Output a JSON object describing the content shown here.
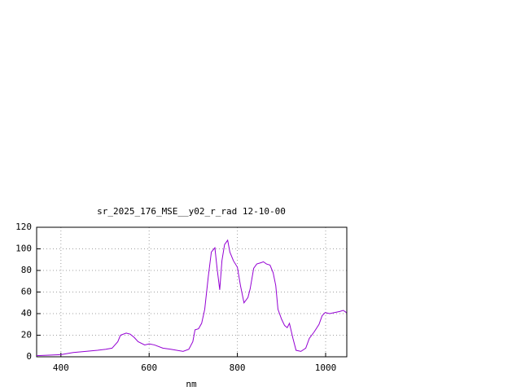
{
  "chart_data": {
    "type": "line",
    "title": "sr_2025_176_MSE__y02_r_rad 12-10-00",
    "x_label": "nm",
    "x": [
      345,
      373,
      400,
      428,
      456,
      483,
      502,
      516,
      529,
      535,
      548,
      557,
      566,
      575,
      590,
      600,
      612,
      631,
      649,
      677,
      690,
      699,
      704,
      712,
      719,
      726,
      734,
      741,
      749,
      754,
      760,
      765,
      771,
      778,
      783,
      791,
      800,
      807,
      815,
      824,
      829,
      837,
      844,
      852,
      859,
      866,
      874,
      881,
      887,
      892,
      900,
      907,
      913,
      918,
      926,
      933,
      944,
      955,
      963,
      974,
      985,
      992,
      999,
      1009,
      1021,
      1032,
      1040,
      1047
    ],
    "series": [
      {
        "color": "#9400d3",
        "values": [
          1,
          1.5,
          2,
          4,
          5,
          6,
          7,
          8,
          14,
          20,
          22,
          21,
          18,
          14,
          11,
          12,
          11,
          8,
          7,
          5,
          7,
          14,
          25,
          26,
          31,
          44,
          74,
          97,
          101,
          82,
          62,
          89,
          104,
          108,
          97,
          89,
          83,
          66,
          50,
          55,
          63,
          82,
          86,
          87,
          88,
          86,
          85,
          78,
          66,
          44,
          35,
          29,
          27,
          31,
          17,
          6,
          5,
          8,
          17,
          23,
          30,
          38,
          41,
          40,
          41,
          42,
          43,
          41
        ]
      }
    ],
    "xlim": [
      345,
      1048
    ],
    "ylim": [
      0,
      120
    ],
    "xticks": [
      400,
      600,
      800,
      1000
    ],
    "yticks": [
      0,
      20,
      40,
      60,
      80,
      100,
      120
    ],
    "grid": true
  }
}
